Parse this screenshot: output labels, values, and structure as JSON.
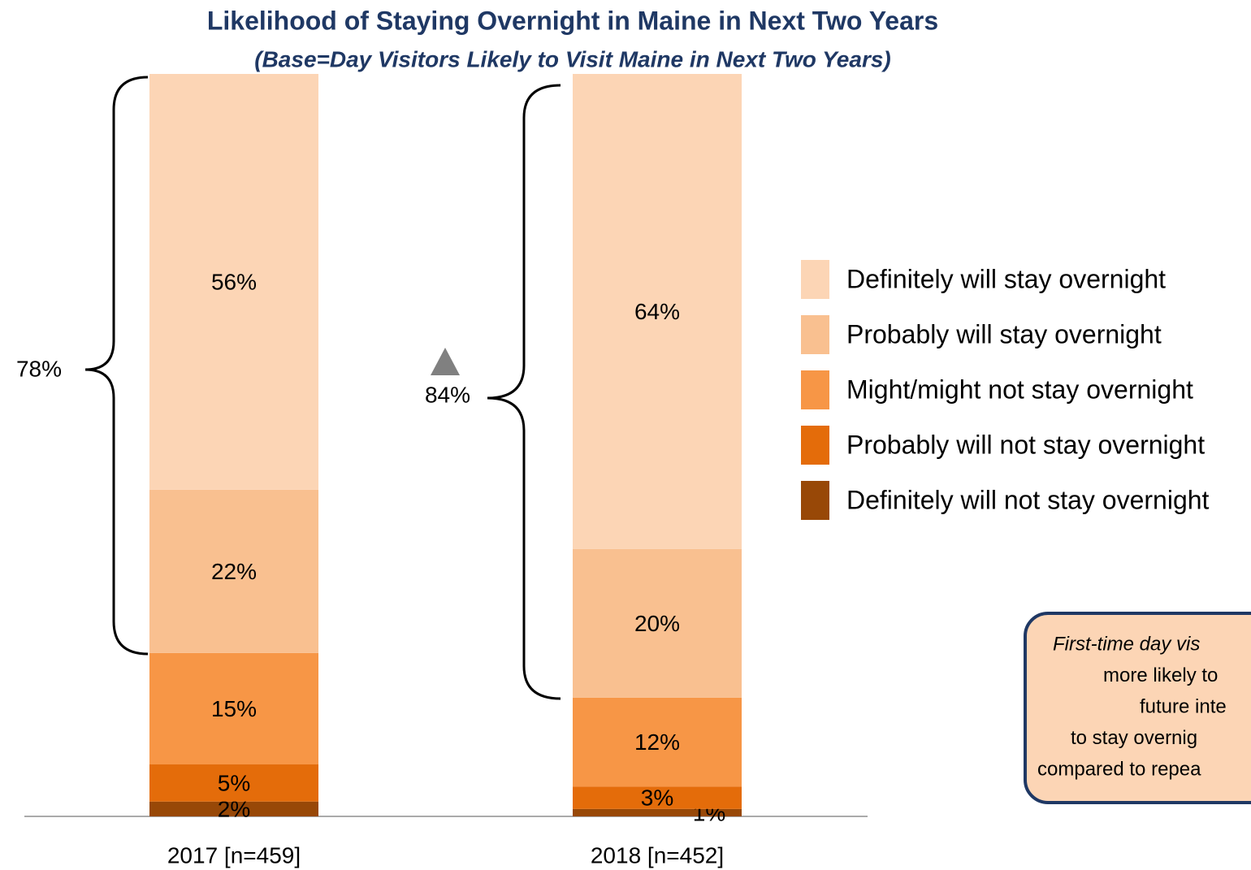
{
  "chart_data": {
    "type": "stacked_bar",
    "title": "Likelihood of Staying Overnight in Maine in Next Two Years",
    "subtitle": "(Base=Day Visitors Likely to Visit Maine in Next Two Years)",
    "categories": [
      "2017 [n=459]",
      "2018 [n=452]"
    ],
    "series": [
      {
        "name": "Definitely will stay overnight",
        "color": "#FCD5B5",
        "values": [
          56,
          64
        ],
        "value_labels": [
          "56%",
          "64%"
        ]
      },
      {
        "name": "Probably will stay overnight",
        "color": "#F9C090",
        "values": [
          22,
          20
        ],
        "value_labels": [
          "22%",
          "20%"
        ]
      },
      {
        "name": "Might/might not stay overnight",
        "color": "#F79646",
        "values": [
          15,
          12
        ],
        "value_labels": [
          "15%",
          "12%"
        ]
      },
      {
        "name": "Probably will not stay overnight",
        "color": "#E46C0A",
        "values": [
          5,
          3
        ],
        "value_labels": [
          "5%",
          "3%"
        ]
      },
      {
        "name": "Definitely will not stay overnight",
        "color": "#984807",
        "values": [
          2,
          1
        ],
        "value_labels": [
          "2%",
          "1%"
        ]
      }
    ],
    "ylim": [
      0,
      100
    ],
    "annotations": [
      "78%",
      "84%"
    ],
    "note": [
      "First-time day vis",
      "more likely to",
      "future inte",
      "to stay overnig",
      "compared to repea"
    ]
  }
}
